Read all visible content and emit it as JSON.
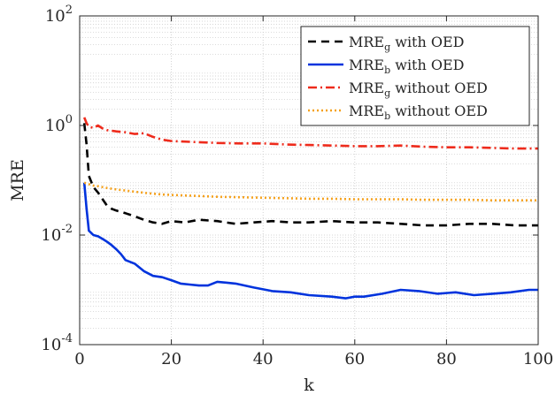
{
  "chart_data": {
    "type": "line",
    "xlabel": "k",
    "ylabel": "MRE",
    "x_scale": "linear",
    "y_scale": "log",
    "xlim": [
      0,
      100
    ],
    "ylim": [
      0.0001,
      100
    ],
    "grid": true,
    "legend_position": "top-right",
    "x_ticks": [
      0,
      20,
      40,
      60,
      80,
      100
    ],
    "x_tick_labels": [
      "0",
      "20",
      "40",
      "60",
      "80",
      "100"
    ],
    "y_ticks": [
      {
        "value": 0.0001,
        "base": "10",
        "exp": "-4"
      },
      {
        "value": 0.01,
        "base": "10",
        "exp": "-2"
      },
      {
        "value": 1,
        "base": "10",
        "exp": "0"
      },
      {
        "value": 100,
        "base": "10",
        "exp": "2"
      }
    ],
    "series": [
      {
        "name": "MRE_g with OED",
        "legend": {
          "base": "MRE",
          "sub": "g",
          "rest": " with OED"
        },
        "color": "#000000",
        "style": "dashed",
        "x": [
          1,
          1.5,
          2,
          3,
          4,
          5,
          6,
          7,
          8,
          10,
          12,
          14,
          16,
          18,
          20,
          23,
          26,
          30,
          34,
          38,
          42,
          46,
          50,
          55,
          60,
          65,
          70,
          75,
          80,
          85,
          90,
          95,
          100
        ],
        "y": [
          1.1,
          0.45,
          0.12,
          0.075,
          0.06,
          0.045,
          0.034,
          0.03,
          0.028,
          0.025,
          0.022,
          0.019,
          0.017,
          0.016,
          0.018,
          0.017,
          0.019,
          0.018,
          0.016,
          0.017,
          0.018,
          0.017,
          0.017,
          0.018,
          0.017,
          0.017,
          0.016,
          0.015,
          0.015,
          0.016,
          0.016,
          0.015,
          0.015
        ]
      },
      {
        "name": "MRE_b with OED",
        "legend": {
          "base": "MRE",
          "sub": "b",
          "rest": " with OED"
        },
        "color": "#0033dd",
        "style": "solid",
        "x": [
          1,
          1.5,
          2,
          3,
          4,
          5,
          6,
          7,
          8,
          9,
          10,
          12,
          14,
          16,
          18,
          20,
          22,
          24,
          26,
          28,
          30,
          34,
          38,
          42,
          46,
          50,
          55,
          58,
          60,
          62,
          66,
          70,
          74,
          78,
          82,
          86,
          90,
          94,
          98,
          100
        ],
        "y": [
          0.09,
          0.03,
          0.012,
          0.01,
          0.0095,
          0.0085,
          0.0075,
          0.0065,
          0.0055,
          0.0045,
          0.0035,
          0.003,
          0.0022,
          0.0018,
          0.0017,
          0.0015,
          0.0013,
          0.00125,
          0.0012,
          0.0012,
          0.0014,
          0.0013,
          0.0011,
          0.00095,
          0.0009,
          0.0008,
          0.00075,
          0.0007,
          0.00075,
          0.00075,
          0.00085,
          0.001,
          0.00095,
          0.00085,
          0.0009,
          0.0008,
          0.00085,
          0.0009,
          0.001,
          0.001
        ]
      },
      {
        "name": "MRE_g without OED",
        "legend": {
          "base": "MRE",
          "sub": "g",
          "rest": " without OED"
        },
        "color": "#ee2b1c",
        "style": "dashdot",
        "x": [
          1,
          1.5,
          2,
          3,
          4,
          5,
          6,
          8,
          10,
          12,
          14,
          16,
          18,
          20,
          25,
          30,
          35,
          40,
          45,
          50,
          55,
          60,
          65,
          70,
          75,
          80,
          85,
          90,
          95,
          100
        ],
        "y": [
          1.4,
          1.1,
          0.95,
          0.9,
          1.0,
          0.88,
          0.82,
          0.78,
          0.75,
          0.7,
          0.72,
          0.62,
          0.55,
          0.52,
          0.5,
          0.48,
          0.47,
          0.47,
          0.45,
          0.44,
          0.43,
          0.42,
          0.42,
          0.43,
          0.41,
          0.4,
          0.4,
          0.39,
          0.38,
          0.38
        ]
      },
      {
        "name": "MRE_b without OED",
        "legend": {
          "base": "MRE",
          "sub": "b",
          "rest": " without OED"
        },
        "color": "#f5a11c",
        "style": "dotted",
        "x": [
          1,
          2,
          3,
          4,
          6,
          8,
          10,
          12,
          15,
          18,
          20,
          25,
          30,
          35,
          40,
          45,
          50,
          55,
          60,
          65,
          70,
          75,
          80,
          85,
          90,
          95,
          100
        ],
        "y": [
          0.09,
          0.085,
          0.08,
          0.078,
          0.072,
          0.068,
          0.065,
          0.062,
          0.058,
          0.055,
          0.054,
          0.052,
          0.05,
          0.049,
          0.048,
          0.047,
          0.046,
          0.046,
          0.045,
          0.045,
          0.045,
          0.044,
          0.044,
          0.044,
          0.043,
          0.043,
          0.043
        ]
      }
    ]
  }
}
